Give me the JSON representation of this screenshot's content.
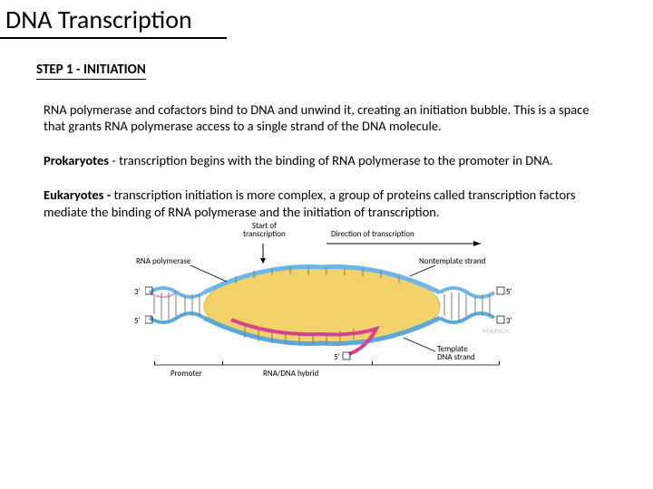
{
  "title": "DNA Transcription",
  "step_heading": "STEP 1 - INITIATION",
  "paragraphs": {
    "p1": "RNA polymerase and cofactors bind to DNA and unwind it, creating an initiation bubble. This is a space that grants RNA polymerase access to a single strand of the DNA molecule.",
    "p2_lead": "Prokaryotes",
    "p2_rest": "  - transcription begins with the binding of RNA polymerase to the promoter in DNA.",
    "p3_lead": "Eukaryotes - ",
    "p3_rest": "transcription initiation is more complex, a group of proteins called transcription factors mediate the binding of RNA polymerase and the initiation of transcription."
  },
  "diagram": {
    "labels": {
      "start": "Start of\ntranscription",
      "direction": "Direction of transcription",
      "rna_poly": "RNA polymerase",
      "nontemplate": "Nontemplate strand",
      "template": "Template\nDNA strand",
      "promoter": "Promoter",
      "hybrid": "RNA/DNA hybrid",
      "five_prime": "5'",
      "three_prime": "3'"
    },
    "colors": {
      "polymerase_fill": "#f3d26a",
      "polymerase_stroke": "#d9b847",
      "dna_top": "#6db7e8",
      "dna_bottom": "#5aa8dd",
      "rna": "#d9408f",
      "rung": "#7a7a7a",
      "text": "#000000",
      "credit": "#bfbfbf"
    },
    "credit": "PEARSON"
  }
}
